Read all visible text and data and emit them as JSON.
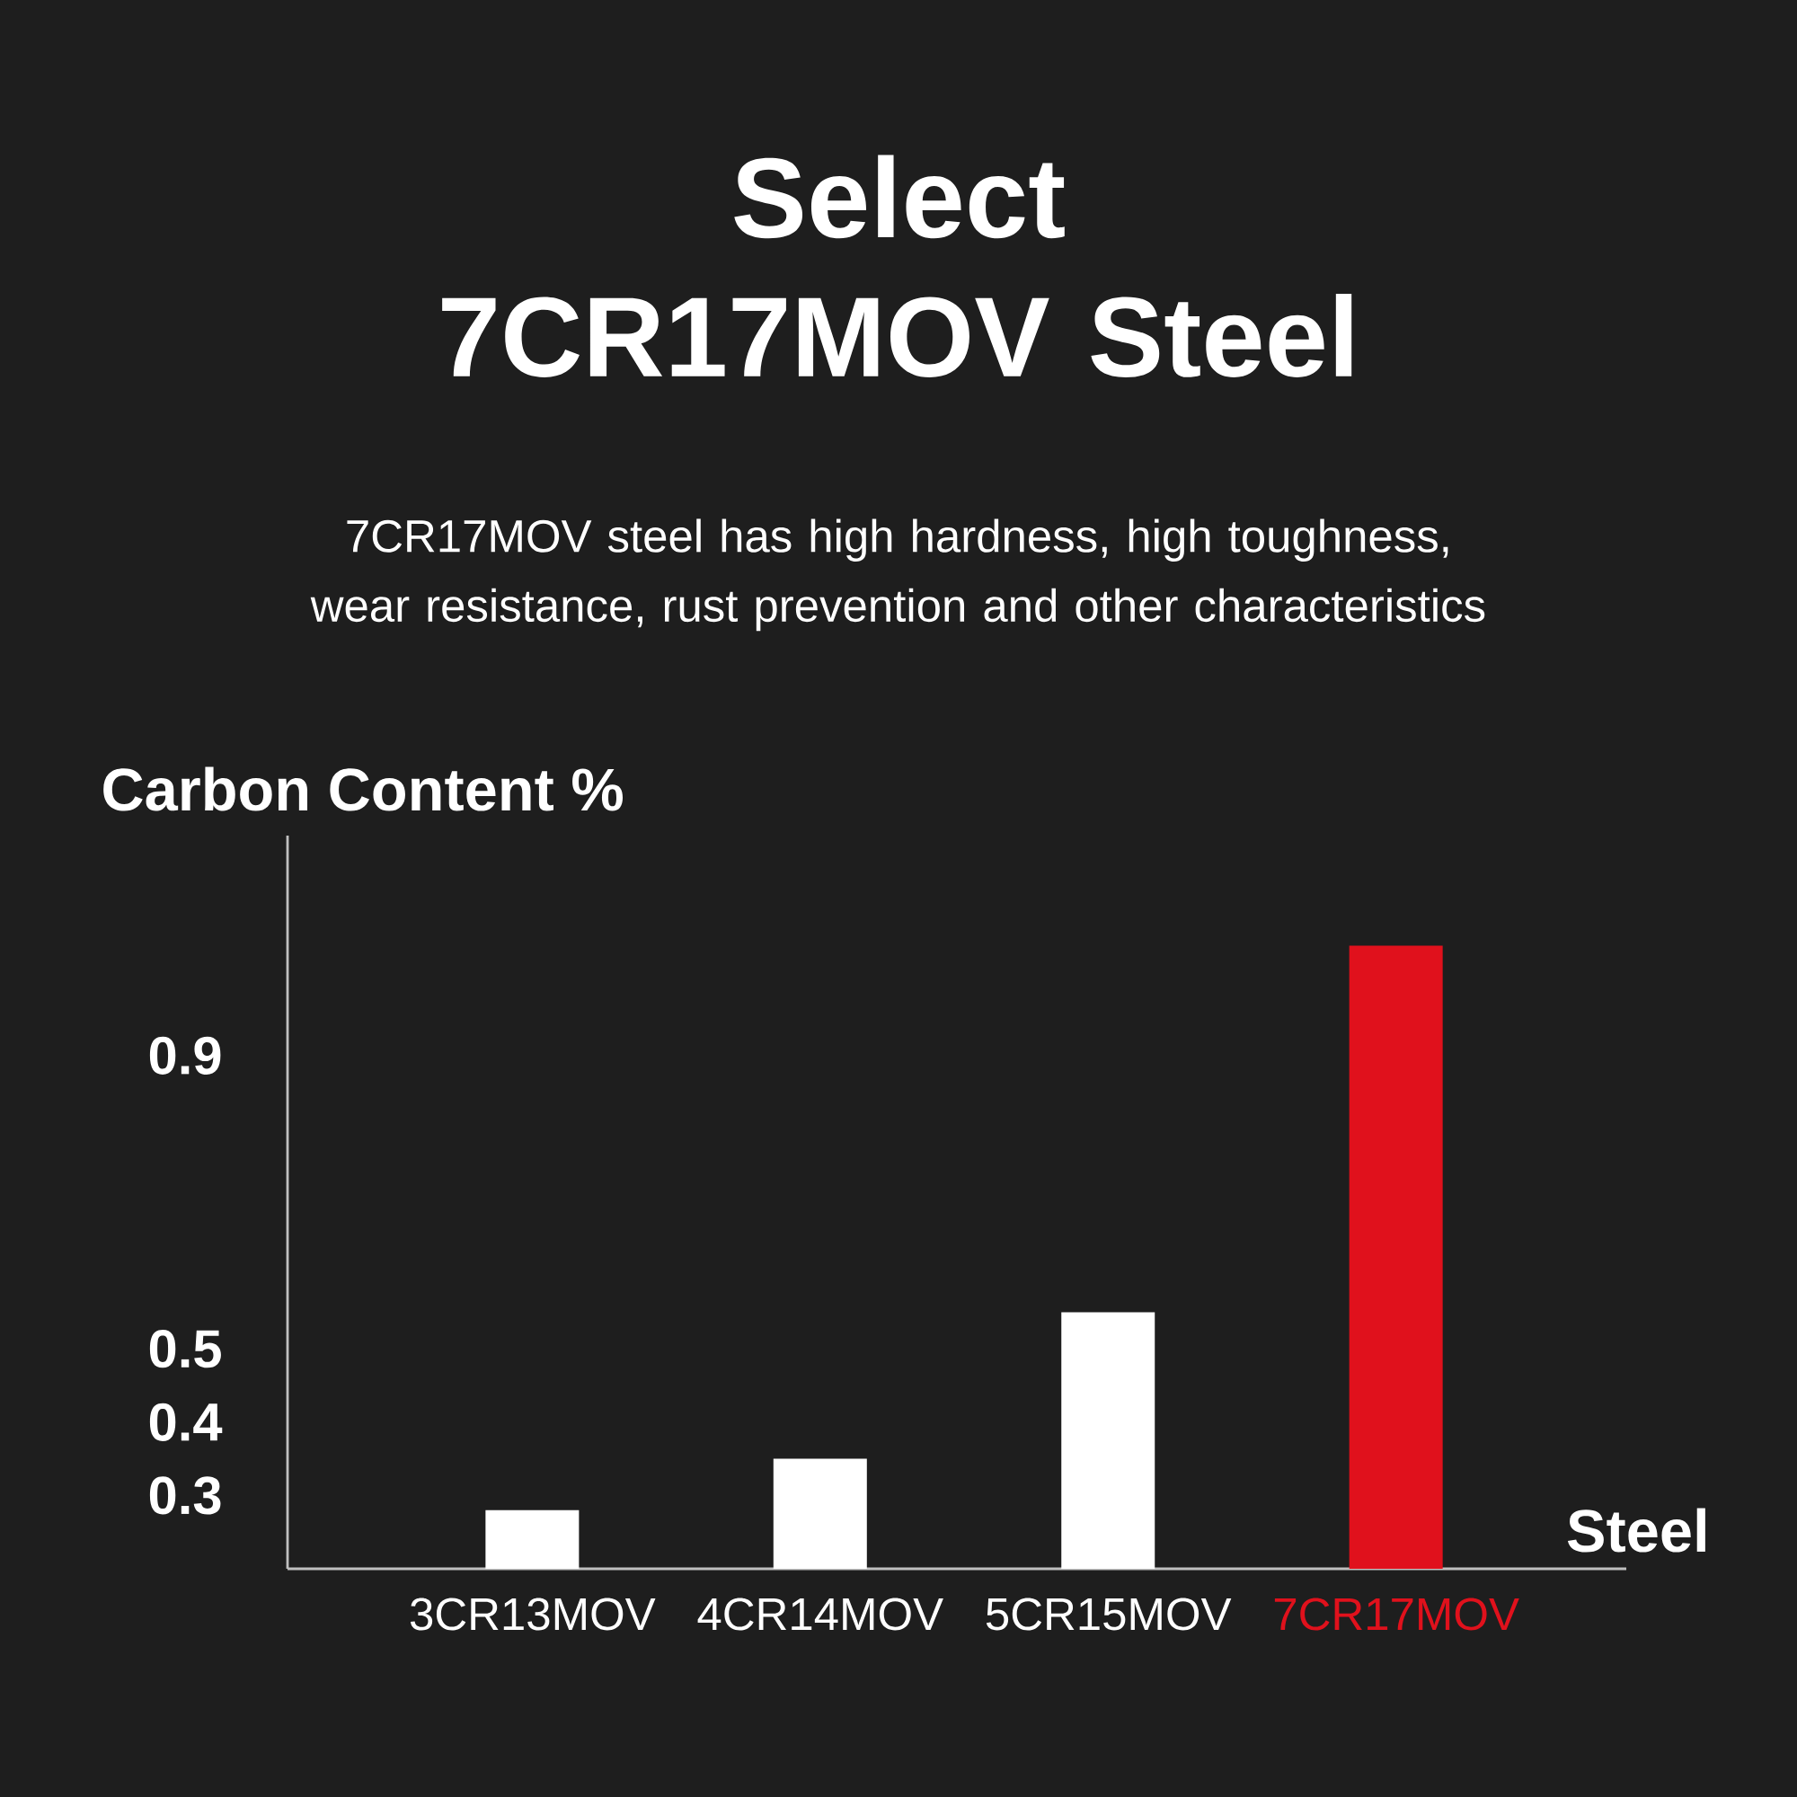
{
  "chart_data": {
    "type": "bar",
    "title": "Select 7CR17MOV Steel",
    "subtitle": "7CR17MOV steel has high hardness, high toughness, wear resistance, rust prevention and other characteristics",
    "ylabel": "Carbon Content %",
    "xlabel": "Steel",
    "categories": [
      "3CR13MOV",
      "4CR14MOV",
      "5CR15MOV",
      "7CR17MOV"
    ],
    "values": [
      0.28,
      0.35,
      0.55,
      1.05
    ],
    "colors": [
      "#ffffff",
      "#ffffff",
      "#ffffff",
      "#e0111c"
    ],
    "ylim": [
      0.2,
      1.2
    ],
    "yticks": [
      0.3,
      0.4,
      0.5,
      0.9
    ]
  }
}
